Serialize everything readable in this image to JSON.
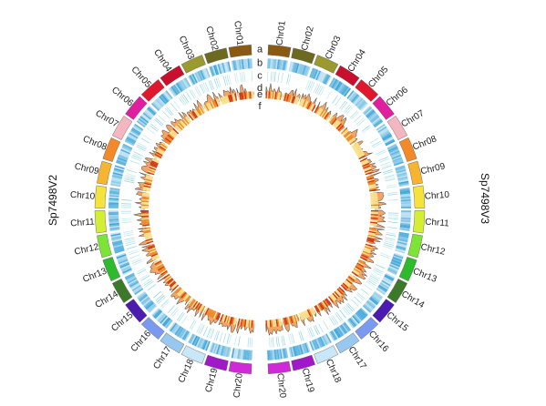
{
  "diagram": {
    "genomes": [
      {
        "name": "Sp7498V3",
        "side": "right"
      },
      {
        "name": "Sp7498V2",
        "side": "left"
      }
    ],
    "track_letters": [
      "a",
      "b",
      "c",
      "d",
      "e",
      "f"
    ],
    "chromosomes": [
      "Chr01",
      "Chr02",
      "Chr03",
      "Chr04",
      "Chr05",
      "Chr06",
      "Chr07",
      "Chr08",
      "Chr09",
      "Chr10",
      "Chr11",
      "Chr12",
      "Chr13",
      "Chr14",
      "Chr15",
      "Chr16",
      "Chr17",
      "Chr18",
      "Chr19",
      "Chr20"
    ],
    "chromosome_colors": [
      "#8B5A12",
      "#6B6A1E",
      "#9A9A2E",
      "#C8102E",
      "#E0182E",
      "#E01FA0",
      "#F4B6C0",
      "#F4892A",
      "#F7B431",
      "#F5E23A",
      "#D4EE34",
      "#7CE436",
      "#2DBA2D",
      "#3C7A2A",
      "#4A1DB0",
      "#7A9AF0",
      "#98C8F0",
      "#C8E8F8",
      "#A018C8",
      "#D02AD8"
    ],
    "link_color": "#F5DFA8",
    "track_colors": {
      "gene_density": "#39A3D8",
      "te_density": "#7FD0DF",
      "gc_line": "#444444",
      "heat_low": "#FBE08A",
      "heat_high": "#D23A1A",
      "area_fill": "#F4A464"
    }
  }
}
